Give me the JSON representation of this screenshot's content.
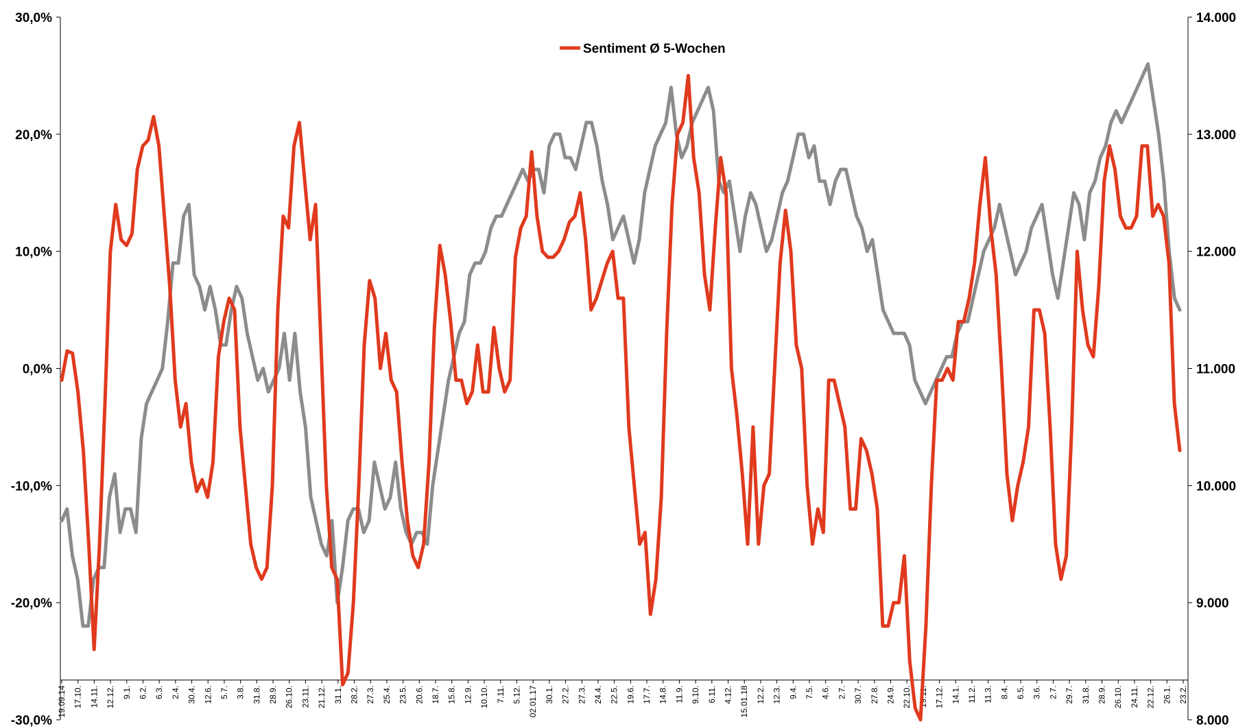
{
  "chart_data": {
    "type": "line",
    "title": "",
    "legend": {
      "position": "top-center",
      "entries": [
        "Sentiment Ø 5-Wochen"
      ]
    },
    "y_left": {
      "range": [
        -30,
        30
      ],
      "ticks": [
        30,
        20,
        10,
        0,
        -10,
        -20,
        -30
      ],
      "tick_labels": [
        "30,0%",
        "20,0%",
        "10,0%",
        "0,0%",
        "-10,0%",
        "-20,0%",
        "-30,0%"
      ]
    },
    "y_right": {
      "range": [
        8000,
        14000
      ],
      "ticks": [
        14000,
        13000,
        12000,
        11000,
        10000,
        9000,
        8000
      ],
      "tick_labels": [
        "14.000",
        "13.000",
        "12.000",
        "11.000",
        "10.000",
        "9.000",
        "8.000"
      ]
    },
    "x_tick_labels": [
      "19.09.14",
      "17.10.",
      "14.11.",
      "12.12.",
      "9.1.",
      "6.2.",
      "6.3.",
      "2.4.",
      "30.4.",
      "12.6.",
      "5.7.",
      "3.8.",
      "31.8.",
      "28.9.",
      "26.10.",
      "23.11.",
      "21.12.",
      "31.1.",
      "28.2.",
      "27.3.",
      "25.4.",
      "23.5.",
      "20.6.",
      "18.7.",
      "15.8.",
      "12.9.",
      "10.10.",
      "7.11.",
      "5.12.",
      "02.01.17",
      "30.1.",
      "27.2.",
      "27.3.",
      "24.4.",
      "22.5.",
      "19.6.",
      "17.7.",
      "14.8.",
      "11.9.",
      "9.10.",
      "6.11.",
      "4.12.",
      "15.01.18",
      "12.2.",
      "12.3.",
      "9.4.",
      "7.5.",
      "4.6.",
      "2.7.",
      "30.7.",
      "27.8.",
      "24.9.",
      "22.10.",
      "19.11.",
      "17.12.",
      "14.1.",
      "11.2.",
      "11.3.",
      "8.4.",
      "6.5.",
      "3.6.",
      "2.7.",
      "29.7.",
      "31.8.",
      "28.9.",
      "26.10.",
      "24.11.",
      "22.12.",
      "26.1.",
      "23.2."
    ],
    "series": [
      {
        "name": "Sentiment Ø 5-Wochen",
        "axis": "left",
        "color": "#e03a1e",
        "values": [
          -1,
          1.5,
          1.3,
          -2,
          -7,
          -15,
          -24,
          -15,
          -3,
          10,
          14,
          11,
          10.5,
          11.5,
          17,
          19,
          19.5,
          21.5,
          19,
          13,
          7,
          -1,
          -5,
          -3,
          -8,
          -10.5,
          -9.5,
          -11,
          -8,
          1,
          4,
          6,
          5,
          -5,
          -10,
          -15,
          -17,
          -18,
          -17,
          -10,
          5,
          13,
          12,
          19,
          21,
          16,
          11,
          14,
          2,
          -10,
          -17,
          -18,
          -27,
          -26,
          -20,
          -10,
          2,
          7.5,
          6,
          0,
          3,
          -1,
          -2,
          -8,
          -13,
          -16,
          -17,
          -15,
          -8,
          3.5,
          10.5,
          8,
          4,
          -1,
          -1,
          -3,
          -2,
          2,
          -2,
          -2,
          3.5,
          0,
          -2,
          -1,
          9.5,
          12,
          13,
          18.5,
          13,
          10,
          9.5,
          9.5,
          10,
          11,
          12.5,
          13,
          15,
          11,
          5,
          6,
          7.5,
          9,
          10,
          6,
          6,
          -5,
          -10,
          -15,
          -14,
          -21,
          -18,
          -11,
          3,
          14,
          20,
          21,
          25,
          18,
          15,
          8,
          5,
          12,
          18,
          15,
          0,
          -4,
          -9,
          -15,
          -5,
          -15,
          -10,
          -9,
          0,
          9,
          13.5,
          10,
          2,
          0,
          -10,
          -15,
          -12,
          -14,
          -1,
          -1,
          -3,
          -5,
          -12,
          -12,
          -6,
          -7,
          -9,
          -12,
          -22,
          -22,
          -20,
          -20,
          -16,
          -25,
          -29,
          -30,
          -22,
          -10,
          -1,
          -1,
          0,
          -1,
          4,
          4,
          6,
          9,
          14,
          18,
          12,
          8,
          0,
          -9,
          -13,
          -10,
          -8,
          -5,
          5,
          5,
          3,
          -5,
          -15,
          -18,
          -16,
          -5,
          10,
          5,
          2,
          1,
          7,
          16,
          19,
          17,
          13,
          12,
          12,
          13,
          19,
          19,
          13,
          14,
          13,
          9,
          -3,
          -7
        ]
      },
      {
        "name": "",
        "axis": "right",
        "color": "#8c8c8c",
        "values": [
          9.7,
          9.8,
          9.4,
          9.2,
          8.8,
          8.8,
          9.2,
          9.3,
          9.3,
          9.9,
          10.1,
          9.6,
          9.8,
          9.8,
          9.6,
          10.4,
          10.7,
          10.8,
          10.9,
          11.0,
          11.4,
          11.9,
          11.9,
          12.3,
          12.4,
          11.8,
          11.7,
          11.5,
          11.7,
          11.5,
          11.2,
          11.2,
          11.5,
          11.7,
          11.6,
          11.3,
          11.1,
          10.9,
          11.0,
          10.8,
          10.9,
          11.0,
          11.3,
          10.9,
          11.3,
          10.8,
          10.5,
          9.9,
          9.7,
          9.5,
          9.4,
          9.7,
          9.0,
          9.3,
          9.7,
          9.8,
          9.8,
          9.6,
          9.7,
          10.2,
          10.0,
          9.8,
          9.9,
          10.2,
          9.8,
          9.6,
          9.5,
          9.6,
          9.6,
          9.5,
          10.0,
          10.3,
          10.6,
          10.9,
          11.1,
          11.3,
          11.4,
          11.8,
          11.9,
          11.9,
          12.0,
          12.2,
          12.3,
          12.3,
          12.4,
          12.5,
          12.6,
          12.7,
          12.6,
          12.7,
          12.7,
          12.5,
          12.9,
          13.0,
          13.0,
          12.8,
          12.8,
          12.7,
          12.9,
          13.1,
          13.1,
          12.9,
          12.6,
          12.4,
          12.1,
          12.2,
          12.3,
          12.1,
          11.9,
          12.1,
          12.5,
          12.7,
          12.9,
          13.0,
          13.1,
          13.4,
          13.0,
          12.8,
          12.9,
          13.1,
          13.2,
          13.3,
          13.4,
          13.2,
          12.6,
          12.5,
          12.6,
          12.3,
          12.0,
          12.3,
          12.5,
          12.4,
          12.2,
          12.0,
          12.1,
          12.3,
          12.5,
          12.6,
          12.8,
          13.0,
          13.0,
          12.8,
          12.9,
          12.6,
          12.6,
          12.4,
          12.6,
          12.7,
          12.7,
          12.5,
          12.3,
          12.2,
          12.0,
          12.1,
          11.8,
          11.5,
          11.4,
          11.3,
          11.3,
          11.3,
          11.2,
          10.9,
          10.8,
          10.7,
          10.8,
          10.9,
          11.0,
          11.1,
          11.1,
          11.3,
          11.4,
          11.4,
          11.6,
          11.8,
          12.0,
          12.1,
          12.2,
          12.4,
          12.2,
          12.0,
          11.8,
          11.9,
          12.0,
          12.2,
          12.3,
          12.4,
          12.1,
          11.8,
          11.6,
          11.9,
          12.2,
          12.5,
          12.4,
          12.1,
          12.5,
          12.6,
          12.8,
          12.9,
          13.1,
          13.2,
          13.1,
          13.2,
          13.3,
          13.4,
          13.5,
          13.6,
          13.3,
          13.0,
          12.6,
          12.0,
          11.6,
          11.5
        ]
      }
    ]
  }
}
